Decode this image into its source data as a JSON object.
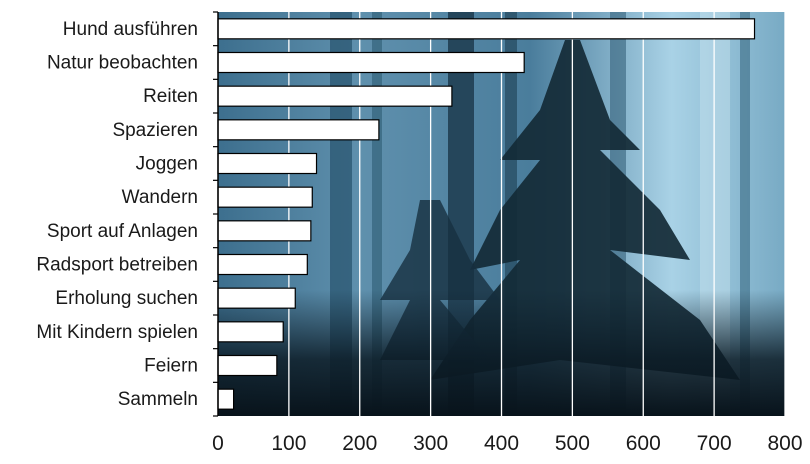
{
  "chart_data": {
    "type": "bar",
    "orientation": "horizontal",
    "title": "",
    "xlabel": "",
    "ylabel": "",
    "categories": [
      "Hund ausführen",
      "Natur beobachten",
      "Reiten",
      "Spazieren",
      "Joggen",
      "Wandern",
      "Sport auf Anlagen",
      "Radsport betreiben",
      "Erholung suchen",
      "Mit Kindern spielen",
      "Feiern",
      "Sammeln"
    ],
    "values": [
      757,
      432,
      330,
      227,
      139,
      133,
      131,
      126,
      109,
      92,
      83,
      22
    ],
    "xlim": [
      0,
      800
    ],
    "xticks": [
      "0",
      "100",
      "200",
      "300",
      "400",
      "500",
      "600",
      "700",
      "800"
    ],
    "grid": true,
    "bar_color": "#ffffff",
    "bar_edge_color": "#000000",
    "gridline_color": "#ffffff",
    "background": "forest photo (blue sky, dark fir trees)"
  }
}
